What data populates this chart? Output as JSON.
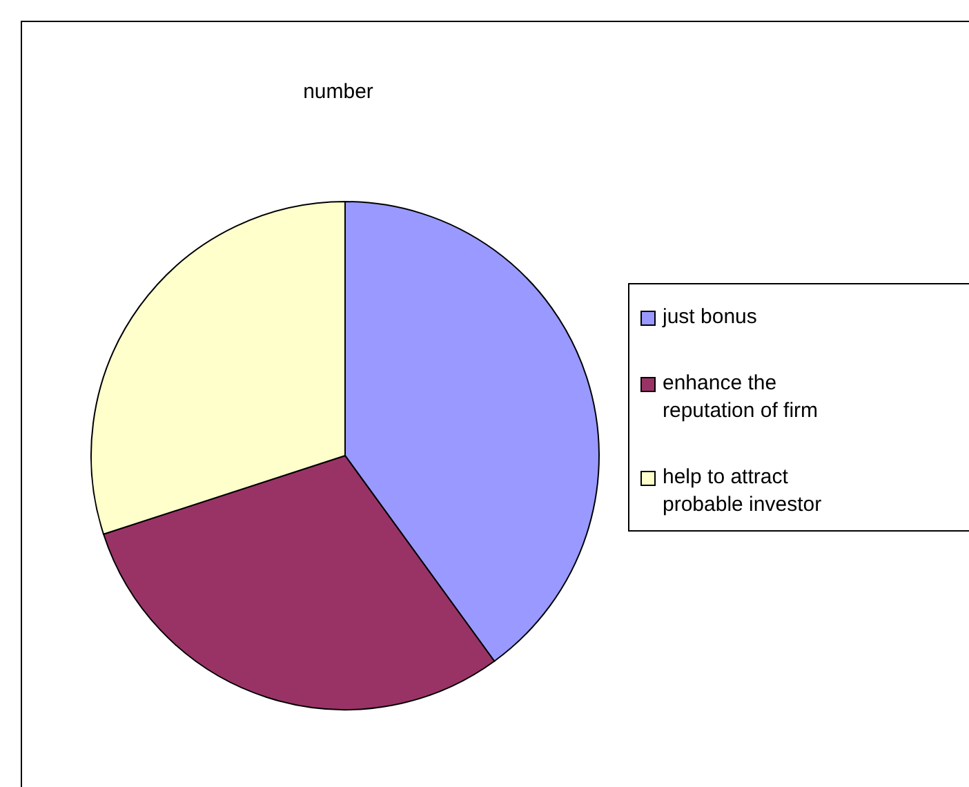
{
  "chart_data": {
    "type": "pie",
    "title": "number",
    "categories": [
      "just bonus",
      "enhance the reputation of firm",
      "help to attract probable investor"
    ],
    "values": [
      40,
      30,
      30
    ],
    "colors": [
      "#9999ff",
      "#993366",
      "#ffffcc"
    ],
    "legend": "right"
  }
}
